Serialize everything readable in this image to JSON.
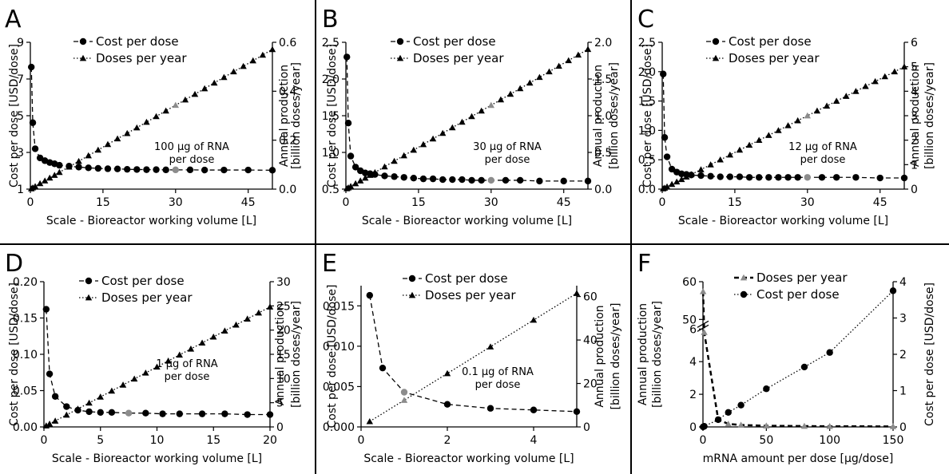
{
  "chart_data": [
    {
      "panel": "A",
      "type": "line",
      "xlabel": "Scale - Bioreactor working volume [L]",
      "ylabel": "Cost per dose [USD/dose]",
      "y2label": [
        "Annual production",
        "[billion doses/year]"
      ],
      "xlim": [
        0,
        50
      ],
      "ylim": [
        1,
        9
      ],
      "y2lim": [
        0,
        0.6
      ],
      "xticks": [
        "0",
        "15",
        "30",
        "45"
      ],
      "xtick_values": [
        0,
        15,
        30,
        45
      ],
      "yticks": [
        "1",
        "3",
        "5",
        "7",
        "9"
      ],
      "ytick_values": [
        1,
        3,
        5,
        7,
        9
      ],
      "y2ticks": [
        "0.0",
        "0.2",
        "0.4",
        "0.6"
      ],
      "y2tick_values": [
        0,
        0.2,
        0.4,
        0.6
      ],
      "legend": [
        "Cost per dose",
        "Doses per year"
      ],
      "legend_position": "top-left",
      "annotation": [
        "100 μg of RNA",
        "per dose"
      ],
      "series": [
        {
          "name": "Cost per dose",
          "axis": "left",
          "style": "dashed-circle",
          "x": [
            0.2,
            0.5,
            1,
            2,
            3,
            4,
            5,
            6,
            8,
            10,
            12,
            14,
            16,
            18,
            20,
            22,
            24,
            26,
            28,
            30,
            33,
            36,
            40,
            45,
            50
          ],
          "y": [
            7.65,
            4.62,
            3.2,
            2.7,
            2.55,
            2.45,
            2.38,
            2.3,
            2.25,
            2.2,
            2.16,
            2.13,
            2.11,
            2.1,
            2.08,
            2.07,
            2.06,
            2.06,
            2.05,
            2.05,
            2.05,
            2.04,
            2.04,
            2.04,
            2.03
          ]
        },
        {
          "name": "Doses per year",
          "axis": "right",
          "style": "dotted-triangle",
          "x": [
            0.2,
            0.5,
            1,
            2,
            3,
            4,
            5,
            6,
            8,
            10,
            12,
            14,
            16,
            18,
            20,
            22,
            24,
            26,
            28,
            30,
            32,
            34,
            36,
            38,
            40,
            42,
            44,
            46,
            48,
            50
          ],
          "y": [
            0.002,
            0.006,
            0.011,
            0.023,
            0.034,
            0.046,
            0.057,
            0.069,
            0.091,
            0.114,
            0.137,
            0.16,
            0.183,
            0.206,
            0.228,
            0.251,
            0.274,
            0.297,
            0.32,
            0.343,
            0.365,
            0.388,
            0.411,
            0.434,
            0.457,
            0.48,
            0.502,
            0.525,
            0.548,
            0.571
          ]
        }
      ],
      "highlight_x": 30
    },
    {
      "panel": "B",
      "type": "line",
      "xlabel": "Scale - Bioreactor working volume [L]",
      "ylabel": "Cost per dose [USD/dose]",
      "y2label": [
        "Annual production",
        "[billion doses/year]"
      ],
      "xlim": [
        0,
        50
      ],
      "ylim": [
        0.5,
        2.5
      ],
      "y2lim": [
        0,
        2.0
      ],
      "xticks": [
        "0",
        "15",
        "30",
        "45"
      ],
      "xtick_values": [
        0,
        15,
        30,
        45
      ],
      "yticks": [
        "0.5",
        "1.0",
        "1.5",
        "2.0",
        "2.5"
      ],
      "ytick_values": [
        0.5,
        1.0,
        1.5,
        2.0,
        2.5
      ],
      "y2ticks": [
        "0.0",
        "0.5",
        "1.0",
        "1.5",
        "2.0"
      ],
      "y2tick_values": [
        0,
        0.5,
        1.0,
        1.5,
        2.0
      ],
      "legend": [
        "Cost per dose",
        "Doses per year"
      ],
      "legend_position": "top-left",
      "annotation": [
        "30 μg of RNA",
        "per dose"
      ],
      "series": [
        {
          "name": "Cost per dose",
          "axis": "left",
          "style": "dashed-circle",
          "x": [
            0.2,
            0.5,
            1,
            2,
            3,
            4,
            5,
            6,
            8,
            10,
            12,
            14,
            16,
            18,
            20,
            22,
            24,
            26,
            28,
            30,
            33,
            36,
            40,
            45,
            50
          ],
          "y": [
            2.3,
            1.4,
            0.95,
            0.8,
            0.75,
            0.72,
            0.71,
            0.7,
            0.68,
            0.67,
            0.66,
            0.65,
            0.64,
            0.64,
            0.63,
            0.63,
            0.63,
            0.62,
            0.62,
            0.62,
            0.62,
            0.62,
            0.61,
            0.61,
            0.61
          ]
        },
        {
          "name": "Doses per year",
          "axis": "right",
          "style": "dotted-triangle",
          "x": [
            0.2,
            0.5,
            1,
            2,
            3,
            4,
            5,
            6,
            8,
            10,
            12,
            14,
            16,
            18,
            20,
            22,
            24,
            26,
            28,
            30,
            32,
            34,
            36,
            38,
            40,
            42,
            44,
            46,
            48,
            50
          ],
          "y": [
            0.008,
            0.019,
            0.038,
            0.076,
            0.114,
            0.152,
            0.19,
            0.228,
            0.305,
            0.381,
            0.457,
            0.533,
            0.609,
            0.686,
            0.762,
            0.838,
            0.914,
            0.99,
            1.066,
            1.143,
            1.219,
            1.295,
            1.371,
            1.447,
            1.524,
            1.6,
            1.676,
            1.752,
            1.828,
            1.905
          ]
        }
      ],
      "highlight_x": 30
    },
    {
      "panel": "C",
      "type": "line",
      "xlabel": "Scale - Bioreactor working volume [L]",
      "ylabel": "Cost per dose [USD/dose]",
      "y2label": [
        "Annual production",
        "[billion doses/year]"
      ],
      "xlim": [
        0,
        50
      ],
      "ylim": [
        0,
        2.5
      ],
      "y2lim": [
        0,
        6
      ],
      "xticks": [
        "0",
        "15",
        "30",
        "45"
      ],
      "xtick_values": [
        0,
        15,
        30,
        45
      ],
      "yticks": [
        "0.0",
        "0.5",
        "1.0",
        "1.5",
        "2.0",
        "2.5"
      ],
      "ytick_values": [
        0,
        0.5,
        1.0,
        1.5,
        2.0,
        2.5
      ],
      "y2ticks": [
        "0",
        "1",
        "2",
        "3",
        "4",
        "5",
        "6"
      ],
      "y2tick_values": [
        0,
        1,
        2,
        3,
        4,
        5,
        6
      ],
      "legend": [
        "Cost per dose",
        "Doses per year"
      ],
      "legend_position": "top-left",
      "annotation": [
        "12 μg of RNA",
        "per dose"
      ],
      "series": [
        {
          "name": "Cost per dose",
          "axis": "left",
          "style": "dashed-circle",
          "x": [
            0.2,
            0.5,
            1,
            2,
            3,
            4,
            5,
            6,
            8,
            10,
            12,
            14,
            16,
            18,
            20,
            22,
            24,
            26,
            28,
            30,
            33,
            36,
            40,
            45,
            50
          ],
          "y": [
            1.96,
            0.88,
            0.55,
            0.34,
            0.29,
            0.26,
            0.25,
            0.24,
            0.23,
            0.22,
            0.21,
            0.21,
            0.21,
            0.2,
            0.2,
            0.2,
            0.2,
            0.2,
            0.2,
            0.2,
            0.2,
            0.2,
            0.2,
            0.19,
            0.19
          ]
        },
        {
          "name": "Doses per year",
          "axis": "right",
          "style": "dotted-triangle",
          "x": [
            0.2,
            0.5,
            1,
            2,
            3,
            4,
            5,
            6,
            8,
            10,
            12,
            14,
            16,
            18,
            20,
            22,
            24,
            26,
            28,
            30,
            32,
            34,
            36,
            38,
            40,
            42,
            44,
            46,
            48,
            50
          ],
          "y": [
            0.02,
            0.05,
            0.1,
            0.2,
            0.3,
            0.4,
            0.5,
            0.6,
            0.8,
            1.0,
            1.2,
            1.4,
            1.6,
            1.8,
            2.0,
            2.2,
            2.4,
            2.6,
            2.8,
            3.0,
            3.2,
            3.4,
            3.6,
            3.8,
            4.0,
            4.2,
            4.4,
            4.6,
            4.8,
            5.0
          ]
        }
      ],
      "highlight_x": 30
    },
    {
      "panel": "D",
      "type": "line",
      "xlabel": "Scale - Bioreactor working volume [L]",
      "ylabel": "Cost per dose [USD/dose]",
      "y2label": [
        "Annual production",
        "[billion doses/year]"
      ],
      "xlim": [
        0,
        20
      ],
      "ylim": [
        0,
        0.2
      ],
      "y2lim": [
        0,
        30
      ],
      "xticks": [
        "0",
        "5",
        "10",
        "15",
        "20"
      ],
      "xtick_values": [
        0,
        5,
        10,
        15,
        20
      ],
      "yticks": [
        "0.00",
        "0.05",
        "0.10",
        "0.15",
        "0.20"
      ],
      "ytick_values": [
        0,
        0.05,
        0.1,
        0.15,
        0.2
      ],
      "y2ticks": [
        "0",
        "5",
        "10",
        "15",
        "20",
        "25",
        "30"
      ],
      "y2tick_values": [
        0,
        5,
        10,
        15,
        20,
        25,
        30
      ],
      "legend": [
        "Cost per dose",
        "Doses per year"
      ],
      "legend_position": "top-center",
      "annotation": [
        "1 μg of RNA",
        "per dose"
      ],
      "series": [
        {
          "name": "Cost per dose",
          "axis": "left",
          "style": "dashed-circle",
          "x": [
            0.2,
            0.5,
            1,
            2,
            3,
            4,
            5,
            6,
            7.5,
            9,
            10.5,
            12,
            14,
            16,
            18,
            20
          ],
          "y": [
            0.162,
            0.073,
            0.042,
            0.028,
            0.023,
            0.021,
            0.02,
            0.02,
            0.019,
            0.019,
            0.018,
            0.018,
            0.018,
            0.018,
            0.017,
            0.017
          ]
        },
        {
          "name": "Doses per year",
          "axis": "right",
          "style": "dotted-triangle",
          "x": [
            0.2,
            0.5,
            1,
            2,
            3,
            4,
            5,
            6,
            7,
            8,
            9,
            10,
            11,
            12,
            13,
            14,
            15,
            16,
            17,
            18,
            19,
            20
          ],
          "y": [
            0.25,
            0.62,
            1.24,
            2.48,
            3.72,
            4.96,
            6.2,
            7.44,
            8.68,
            9.92,
            11.16,
            12.4,
            13.64,
            14.88,
            16.12,
            17.36,
            18.6,
            19.84,
            21.08,
            22.32,
            23.56,
            24.8
          ]
        }
      ],
      "highlight_x": 7.5
    },
    {
      "panel": "E",
      "type": "line",
      "xlabel": "Scale - Bioreactor working volume [L]",
      "ylabel": "Cost per dose [USD/dose]",
      "y2label": [
        "Annual production",
        "[billion doses/year]"
      ],
      "xlim": [
        0,
        5
      ],
      "ylim": [
        0,
        0.0175
      ],
      "y2lim": [
        0,
        65
      ],
      "xticks": [
        "0",
        "2",
        "4"
      ],
      "xtick_values": [
        0,
        2,
        4
      ],
      "yticks": [
        "0.000",
        "0.005",
        "0.010",
        "0.015"
      ],
      "ytick_values": [
        0,
        0.005,
        0.01,
        0.015
      ],
      "y2ticks": [
        "0",
        "20",
        "40",
        "60"
      ],
      "y2tick_values": [
        0,
        20,
        40,
        60
      ],
      "legend": [
        "Cost per dose",
        "Doses per year"
      ],
      "legend_position": "top-center",
      "annotation": [
        "0.1 μg of RNA",
        "per dose"
      ],
      "series": [
        {
          "name": "Cost per dose",
          "axis": "left",
          "style": "dashed-circle",
          "x": [
            0.2,
            0.5,
            1,
            2,
            3,
            4,
            5
          ],
          "y": [
            0.0163,
            0.0073,
            0.0043,
            0.0028,
            0.0023,
            0.0021,
            0.0019
          ]
        },
        {
          "name": "Doses per year",
          "axis": "right",
          "style": "dotted-triangle",
          "x": [
            0.2,
            1,
            2,
            3,
            4,
            5
          ],
          "y": [
            2.5,
            12.3,
            24.6,
            36.9,
            49.2,
            61.5
          ]
        }
      ],
      "highlight_x": 1
    },
    {
      "panel": "F",
      "type": "line",
      "xlabel": "mRNA amount per dose [μg/dose]",
      "ylabel": "Annual production\n[billion doses/year]",
      "y2label": [
        "Cost per dose [USD/dose]"
      ],
      "xlim": [
        0,
        150
      ],
      "left_axis_segments": [
        {
          "domain": [
            0,
            6
          ],
          "ticks": [
            "0",
            "2",
            "4",
            "6"
          ],
          "tick_values": [
            0,
            2,
            4,
            6
          ]
        },
        {
          "domain": [
            50,
            60
          ],
          "ticks": [
            "50",
            "60"
          ],
          "tick_values": [
            50,
            60
          ]
        }
      ],
      "y2lim": [
        0,
        4
      ],
      "xticks": [
        "0",
        "50",
        "100",
        "150"
      ],
      "xtick_values": [
        0,
        50,
        100,
        150
      ],
      "y2ticks": [
        "0",
        "1",
        "2",
        "3",
        "4"
      ],
      "y2tick_values": [
        0,
        1,
        2,
        3,
        4
      ],
      "legend": [
        "Doses per year",
        "Cost per dose"
      ],
      "legend_position": "top-left",
      "series": [
        {
          "name": "Doses per year",
          "axis": "left",
          "style": "dashed-gray-triangle",
          "x": [
            0.1,
            1,
            12,
            20,
            30,
            50,
            80,
            100,
            150
          ],
          "y": [
            57.4,
            5.8,
            0.46,
            0.18,
            0.12,
            0.07,
            0.05,
            0.04,
            0.03
          ]
        },
        {
          "name": "Cost per dose",
          "axis": "right",
          "style": "dotted-circle",
          "x": [
            0.1,
            1,
            12,
            20,
            30,
            50,
            80,
            100,
            150
          ],
          "y": [
            0.002,
            0.017,
            0.2,
            0.4,
            0.6,
            1.05,
            1.65,
            2.05,
            3.75
          ]
        }
      ]
    }
  ]
}
